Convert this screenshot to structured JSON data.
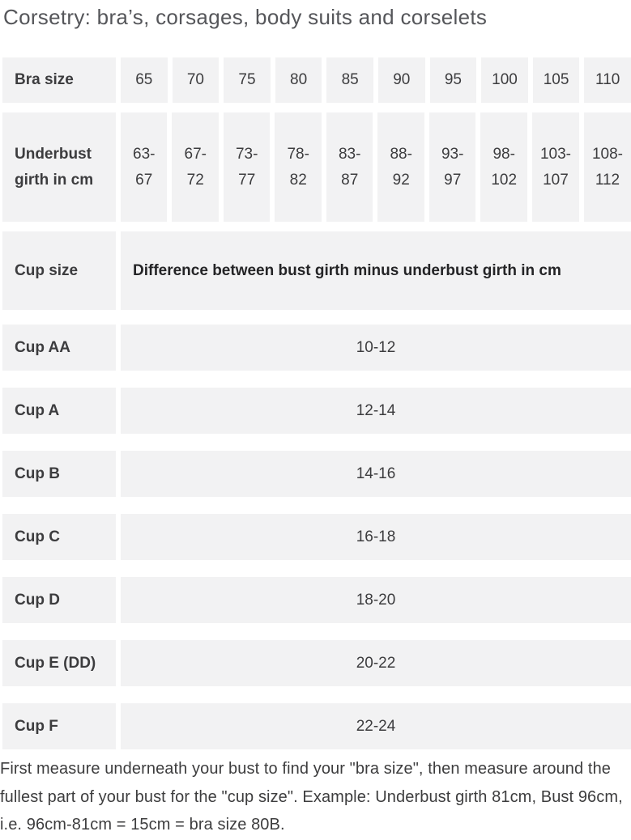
{
  "page": {
    "title": "Corsetry: bra’s, corsages, body suits and corselets",
    "footer": "First measure underneath your bust to find your \"bra size\", then measure around the fullest part of your bust for the \"cup size\". Example: Underbust girth 81cm, Bust 96cm, i.e. 96cm-81cm = 15cm = bra size 80B."
  },
  "size_table": {
    "bra_size_row": {
      "label": "Bra size",
      "values": [
        "65",
        "70",
        "75",
        "80",
        "85",
        "90",
        "95",
        "100",
        "105",
        "110"
      ]
    },
    "underbust_row": {
      "label": "Underbust girth in cm",
      "values": [
        "63-67",
        "67-72",
        "73-77",
        "78-82",
        "83-87",
        "88-92",
        "93-97",
        "98-102",
        "103-107",
        "108-112"
      ]
    },
    "cup_header_row": {
      "label": "Cup size",
      "value": "Difference between bust girth minus underbust girth in cm"
    },
    "cup_rows": [
      {
        "label": "Cup AA",
        "value": "10-12"
      },
      {
        "label": "Cup A",
        "value": "12-14"
      },
      {
        "label": "Cup B",
        "value": "14-16"
      },
      {
        "label": "Cup C",
        "value": "16-18"
      },
      {
        "label": "Cup D",
        "value": "18-20"
      },
      {
        "label": "Cup E (DD)",
        "value": "20-22"
      },
      {
        "label": "Cup F",
        "value": "22-24"
      }
    ]
  },
  "colors": {
    "cell_background": "#f2f2f3",
    "label_text": "#242426",
    "value_text": "#3c3c3e",
    "title_text": "#55565a"
  }
}
